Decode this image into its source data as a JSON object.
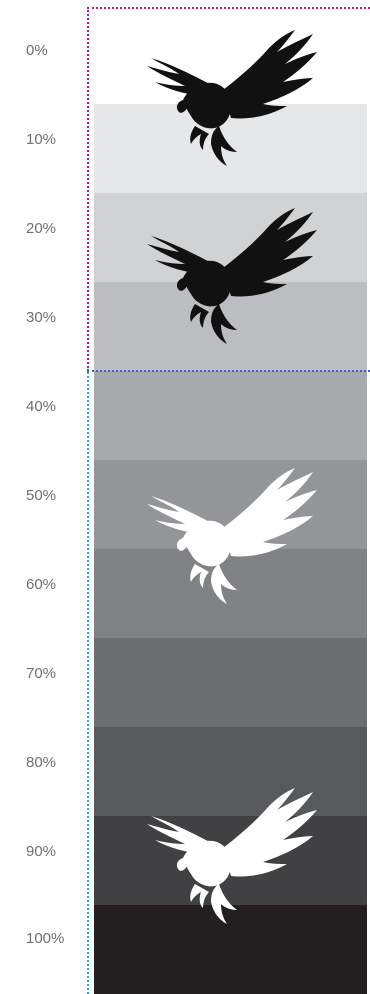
{
  "steps": [
    {
      "label": "0%",
      "color": "#ffffff"
    },
    {
      "label": "10%",
      "color": "#e6e7e8"
    },
    {
      "label": "20%",
      "color": "#d1d2d4"
    },
    {
      "label": "30%",
      "color": "#bcbdc0"
    },
    {
      "label": "40%",
      "color": "#a7a9ac"
    },
    {
      "label": "50%",
      "color": "#939598"
    },
    {
      "label": "60%",
      "color": "#808285"
    },
    {
      "label": "70%",
      "color": "#6d6e71"
    },
    {
      "label": "80%",
      "color": "#58595b"
    },
    {
      "label": "90%",
      "color": "#414042"
    },
    {
      "label": "100%",
      "color": "#231f20"
    }
  ],
  "eagles": [
    {
      "icon": "eagle-logo-black",
      "color": "#111111"
    },
    {
      "icon": "eagle-logo-black",
      "color": "#111111"
    },
    {
      "icon": "eagle-logo-white",
      "color": "#ffffff"
    },
    {
      "icon": "eagle-logo-white",
      "color": "#ffffff"
    }
  ],
  "guide_colors": {
    "magenta": "#c0157f",
    "blue": "#3e5fc6",
    "cyan": "#2aa6d7"
  }
}
